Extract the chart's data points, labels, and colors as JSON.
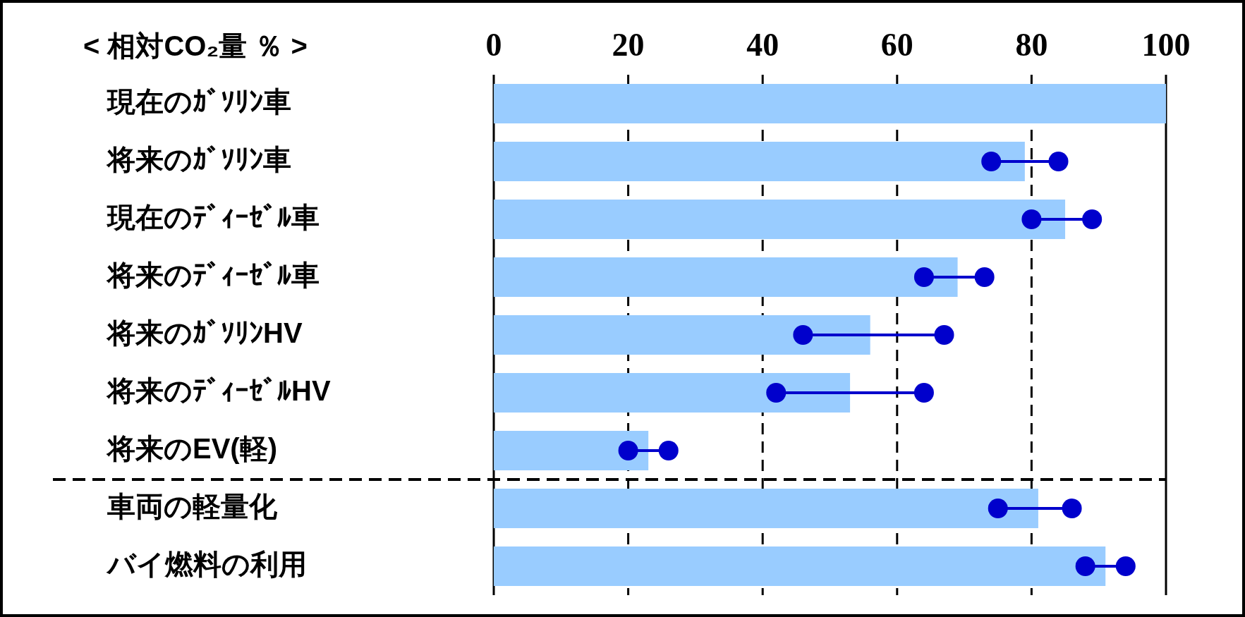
{
  "chart_data": {
    "type": "bar",
    "orientation": "horizontal",
    "title": "< 相対CO₂量 ％ >",
    "categories": [
      "現在のｶﾞｿﾘﾝ車",
      "将来のｶﾞｿﾘﾝ車",
      "現在のﾃﾞｨｰｾﾞﾙ車",
      "将来のﾃﾞｨｰｾﾞﾙ車",
      "将来のｶﾞｿﾘﾝHV",
      "将来のﾃﾞｨｰｾﾞﾙHV",
      "将来のEV(軽)",
      "車両の軽量化",
      "バイ燃料の利用"
    ],
    "series": [
      {
        "color": "#99ccff",
        "values": [
          100,
          79,
          85,
          69,
          56,
          53,
          23,
          81,
          91
        ]
      },
      {
        "type": "scatter",
        "color": "#0000cc",
        "values": [
          null,
          74,
          80,
          64,
          46,
          42,
          20,
          75,
          88
        ]
      },
      {
        "type": "scatter",
        "color": "#0000cc",
        "values": [
          null,
          84,
          89,
          73,
          67,
          64,
          26,
          86,
          94
        ]
      }
    ],
    "xlim": [
      0,
      100
    ],
    "xticks": [
      0,
      20,
      40,
      60,
      80,
      100
    ],
    "grid": "x",
    "marker": "circle",
    "legend": false
  }
}
